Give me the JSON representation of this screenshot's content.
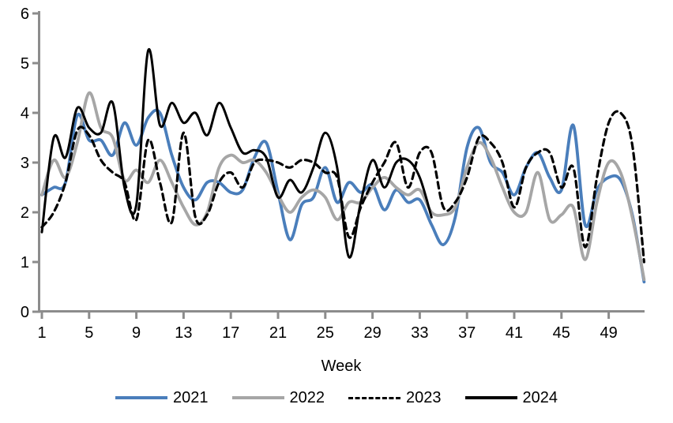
{
  "chart_data": {
    "type": "line",
    "title": "",
    "xlabel": "Week",
    "ylabel": "",
    "xlim": [
      1,
      52
    ],
    "ylim": [
      0,
      6
    ],
    "y_ticks": [
      0,
      1,
      2,
      3,
      4,
      5,
      6
    ],
    "x_ticks": [
      1,
      5,
      9,
      13,
      17,
      21,
      25,
      29,
      33,
      37,
      41,
      45,
      49
    ],
    "grid": "off",
    "legend_position": "bottom",
    "axis_color": "#8c8c8c",
    "tick_label_color": "#000000",
    "series": [
      {
        "name": "2021",
        "color": "#4a7ebb",
        "style": "solid",
        "width": 3.8,
        "start_week": 1,
        "values": [
          2.35,
          2.5,
          2.6,
          3.95,
          3.45,
          3.45,
          3.15,
          3.8,
          3.35,
          3.9,
          4.0,
          3.15,
          2.5,
          2.25,
          2.6,
          2.6,
          2.4,
          2.45,
          3.1,
          3.4,
          2.4,
          1.45,
          2.15,
          2.3,
          2.9,
          2.2,
          2.6,
          2.4,
          2.55,
          2.05,
          2.45,
          2.2,
          2.25,
          1.75,
          1.35,
          1.9,
          3.3,
          3.7,
          3.0,
          2.8,
          2.35,
          2.9,
          3.2,
          2.7,
          2.45,
          3.75,
          1.75,
          2.45,
          2.7,
          2.65,
          1.95,
          0.6
        ]
      },
      {
        "name": "2022",
        "color": "#a6a6a6",
        "style": "solid",
        "width": 3.8,
        "start_week": 1,
        "values": [
          2.35,
          3.05,
          2.7,
          3.4,
          4.4,
          3.7,
          3.5,
          2.65,
          2.85,
          2.6,
          3.05,
          2.6,
          2.1,
          1.75,
          2.0,
          2.9,
          3.15,
          3.0,
          3.05,
          2.8,
          2.35,
          2.0,
          2.3,
          2.45,
          2.3,
          1.85,
          2.2,
          2.2,
          2.5,
          2.7,
          2.5,
          2.35,
          2.45,
          2.0,
          1.95,
          2.1,
          2.9,
          3.4,
          3.1,
          2.5,
          2.0,
          2.0,
          2.8,
          1.85,
          1.95,
          2.1,
          1.05,
          2.2,
          3.0,
          2.8,
          1.9,
          0.65
        ]
      },
      {
        "name": "2023",
        "color": "#000000",
        "style": "dashed",
        "width": 3.2,
        "start_week": 1,
        "values": [
          1.7,
          2.0,
          2.6,
          3.65,
          3.55,
          3.05,
          2.8,
          2.6,
          1.85,
          3.45,
          2.6,
          1.8,
          3.6,
          1.9,
          1.95,
          2.6,
          2.8,
          2.5,
          3.0,
          3.05,
          3.0,
          2.9,
          3.05,
          3.0,
          2.8,
          2.7,
          1.5,
          2.1,
          2.6,
          3.0,
          3.4,
          2.5,
          3.2,
          3.2,
          2.1,
          2.2,
          2.7,
          3.5,
          3.4,
          3.0,
          2.1,
          2.9,
          3.2,
          3.2,
          2.5,
          2.9,
          1.3,
          2.7,
          3.8,
          4.0,
          3.35,
          1.0
        ]
      },
      {
        "name": "2024",
        "color": "#000000",
        "style": "solid",
        "width": 3.0,
        "start_week": 1,
        "values": [
          1.6,
          3.5,
          3.1,
          4.1,
          3.7,
          3.6,
          4.2,
          2.5,
          2.15,
          5.25,
          3.75,
          4.2,
          3.8,
          4.0,
          3.55,
          4.2,
          3.7,
          3.2,
          3.25,
          3.1,
          2.3,
          2.65,
          2.4,
          2.9,
          3.6,
          2.9,
          1.1,
          2.2,
          3.05,
          2.5,
          3.0,
          3.05,
          2.7,
          1.9
        ]
      }
    ]
  }
}
